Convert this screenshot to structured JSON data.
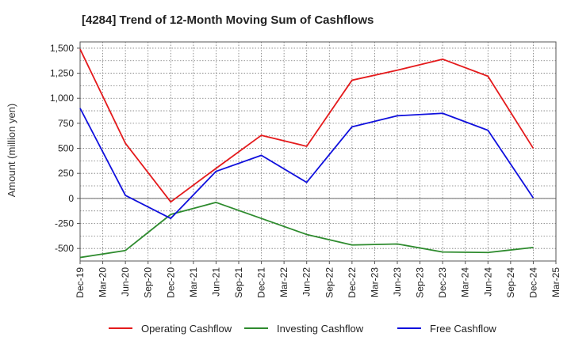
{
  "chart_data": {
    "type": "line",
    "title": "[4284]  Trend of 12-Month Moving Sum of Cashflows",
    "xlabel": "",
    "ylabel": "Amount (million yen)",
    "ylim": [
      -625,
      1562.5
    ],
    "yticks": [
      1500,
      1250,
      1000,
      750,
      500,
      250,
      0,
      -250,
      -500
    ],
    "ytick_labels": [
      "1,500",
      "1,250",
      "1,000",
      "750",
      "500",
      "250",
      "0",
      "-250",
      "-500"
    ],
    "categories": [
      "Dec-19",
      "Mar-20",
      "Jun-20",
      "Sep-20",
      "Dec-20",
      "Mar-21",
      "Jun-21",
      "Sep-21",
      "Dec-21",
      "Mar-22",
      "Jun-22",
      "Sep-22",
      "Dec-22",
      "Mar-23",
      "Jun-23",
      "Sep-23",
      "Dec-23",
      "Mar-24",
      "Jun-24",
      "Sep-24",
      "Dec-24",
      "Mar-25"
    ],
    "grid": true,
    "legend_position": "bottom",
    "series": [
      {
        "name": "Operating Cashflow",
        "color": "#e41a1c",
        "points": [
          {
            "x": "Dec-19",
            "y": 1490
          },
          {
            "x": "Jun-20",
            "y": 550
          },
          {
            "x": "Dec-20",
            "y": -35
          },
          {
            "x": "Jun-21",
            "y": 300
          },
          {
            "x": "Dec-21",
            "y": 630
          },
          {
            "x": "Jun-22",
            "y": 520
          },
          {
            "x": "Dec-22",
            "y": 1180
          },
          {
            "x": "Jun-23",
            "y": 1280
          },
          {
            "x": "Dec-23",
            "y": 1390
          },
          {
            "x": "Jun-24",
            "y": 1220
          },
          {
            "x": "Dec-24",
            "y": 500
          }
        ]
      },
      {
        "name": "Investing Cashflow",
        "color": "#2e8b2e",
        "points": [
          {
            "x": "Dec-19",
            "y": -590
          },
          {
            "x": "Jun-20",
            "y": -520
          },
          {
            "x": "Dec-20",
            "y": -160
          },
          {
            "x": "Jun-21",
            "y": -40
          },
          {
            "x": "Dec-21",
            "y": -200
          },
          {
            "x": "Jun-22",
            "y": -360
          },
          {
            "x": "Dec-22",
            "y": -465
          },
          {
            "x": "Jun-23",
            "y": -455
          },
          {
            "x": "Dec-23",
            "y": -535
          },
          {
            "x": "Jun-24",
            "y": -540
          },
          {
            "x": "Dec-24",
            "y": -490
          }
        ]
      },
      {
        "name": "Free Cashflow",
        "color": "#1010dd",
        "points": [
          {
            "x": "Dec-19",
            "y": 900
          },
          {
            "x": "Jun-20",
            "y": 30
          },
          {
            "x": "Dec-20",
            "y": -200
          },
          {
            "x": "Jun-21",
            "y": 270
          },
          {
            "x": "Dec-21",
            "y": 430
          },
          {
            "x": "Jun-22",
            "y": 160
          },
          {
            "x": "Dec-22",
            "y": 715
          },
          {
            "x": "Jun-23",
            "y": 825
          },
          {
            "x": "Dec-23",
            "y": 850
          },
          {
            "x": "Jun-24",
            "y": 680
          },
          {
            "x": "Dec-24",
            "y": 5
          }
        ]
      }
    ]
  }
}
